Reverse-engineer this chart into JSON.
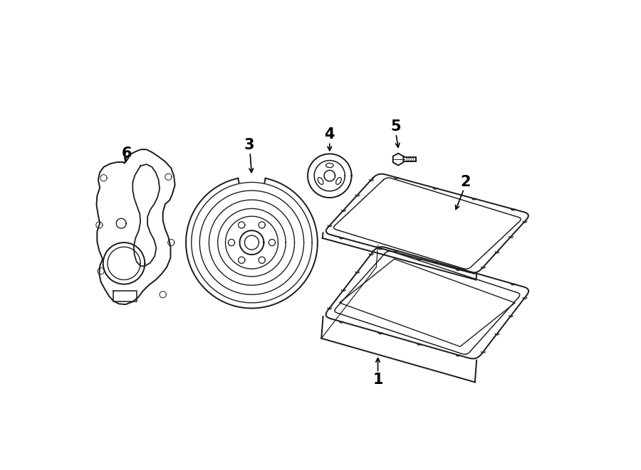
{
  "background_color": "#ffffff",
  "line_color": "#1a1a1a",
  "label_fontsize": 15,
  "lw": 1.4
}
